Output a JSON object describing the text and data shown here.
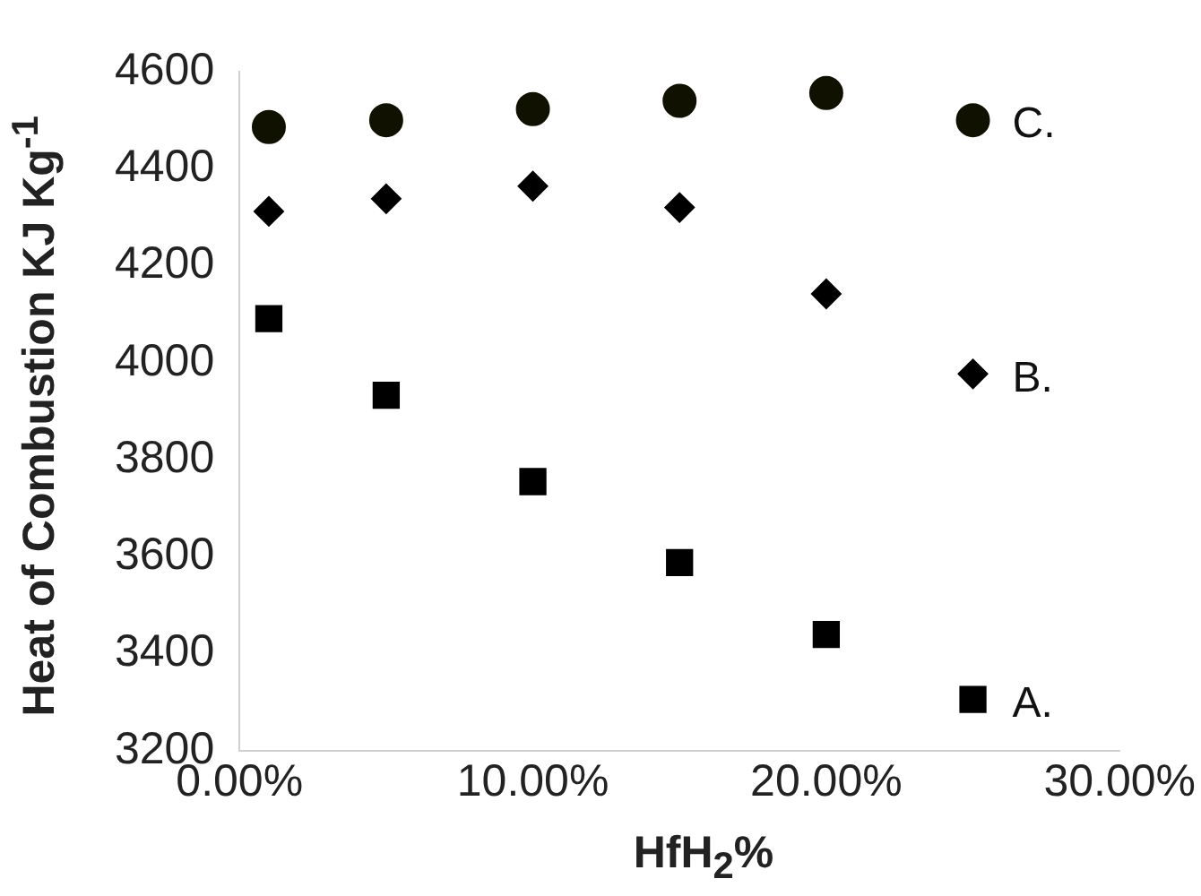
{
  "chart_data": {
    "type": "scatter",
    "xlabel": "HfH$_{2}$%",
    "ylabel": "Heat of Combustion KJ  Kg$^{-1}$",
    "x": [
      0.01,
      0.05,
      0.1,
      0.15,
      0.2,
      0.25
    ],
    "series": [
      {
        "name": "C.",
        "color": "#111100",
        "marker": "circle",
        "values": [
          4486,
          4500,
          4523,
          4540,
          4556,
          4500
        ]
      },
      {
        "name": "B.",
        "color": "#000000",
        "marker": "diamond",
        "values": [
          4312,
          4338,
          4364,
          4320,
          4142,
          3977
        ]
      },
      {
        "name": "A.",
        "color": "#000000",
        "marker": "square",
        "values": [
          4091,
          3933,
          3755,
          3588,
          3440,
          3306
        ]
      }
    ],
    "xlim": [
      0,
      0.3
    ],
    "xticks": [
      {
        "value": 0,
        "label": "0.00%"
      },
      {
        "value": 0.1,
        "label": "10.00%"
      },
      {
        "value": 0.2,
        "label": "20.00%"
      },
      {
        "value": 0.3,
        "label": "30.00%"
      }
    ],
    "ylim": [
      3200,
      4600
    ],
    "yticks": [
      3200,
      3400,
      3600,
      3800,
      4000,
      4200,
      4400,
      4600
    ],
    "grid": false,
    "legend": false
  }
}
